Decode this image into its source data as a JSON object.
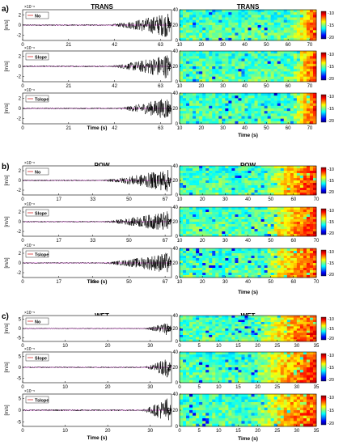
{
  "panels": [
    {
      "letter": "a)",
      "title_left": "TRANS",
      "title_right": "TRANS",
      "time": {
        "xticks": [
          "0",
          "21",
          "42",
          "63"
        ],
        "xmax": 68,
        "label": "Time (s)",
        "exp": "×10⁻⁶",
        "rows": [
          {
            "legend": "No",
            "yticks": [
              "2",
              "0",
              "-2"
            ],
            "ylim": [
              -3,
              3
            ],
            "onset": 0.55,
            "amp": 2.6
          },
          {
            "legend": "Slope",
            "yticks": [
              "2",
              "0",
              "-2"
            ],
            "ylim": [
              -3,
              3
            ],
            "onset": 0.55,
            "amp": 2.6
          },
          {
            "legend": "Tslope",
            "yticks": [
              "2",
              "0",
              "-2"
            ],
            "ylim": [
              -3,
              3
            ],
            "onset": 0.6,
            "amp": 2.4
          }
        ]
      },
      "spec": {
        "xticks": [
          "10",
          "20",
          "30",
          "40",
          "50",
          "60",
          "70"
        ],
        "xlim": [
          10,
          73
        ],
        "yticks": [
          "40",
          "20",
          "0"
        ],
        "label": "Time (s)",
        "ylabel": "Hz",
        "cticks": [
          "-10",
          "-15",
          "-20"
        ],
        "hot_start": 0.82
      }
    },
    {
      "letter": "b)",
      "title_left": "POW",
      "title_right": "POW",
      "time": {
        "xticks": [
          "0",
          "17",
          "33",
          "50",
          "67"
        ],
        "xmax": 70,
        "label": "Time (s)",
        "exp": "×10⁻⁶",
        "rows": [
          {
            "legend": "No",
            "yticks": [
              "2",
              "0",
              "-2"
            ],
            "ylim": [
              -3,
              3
            ],
            "onset": 0.5,
            "amp": 2.5
          },
          {
            "legend": "Slope",
            "yticks": [
              "2",
              "0",
              "-2"
            ],
            "ylim": [
              -3,
              3
            ],
            "onset": 0.5,
            "amp": 2.3
          },
          {
            "legend": "Tslope",
            "yticks": [
              "2",
              "0",
              "-2"
            ],
            "ylim": [
              -3,
              3
            ],
            "onset": 0.5,
            "amp": 2.3
          }
        ]
      },
      "spec": {
        "xticks": [
          "10",
          "20",
          "30",
          "40",
          "50",
          "60",
          "70"
        ],
        "xlim": [
          10,
          70
        ],
        "yticks": [
          "40",
          "20",
          "0"
        ],
        "label": "Time (s)",
        "ylabel": "Hz",
        "cticks": [
          "-10",
          "-15",
          "-20"
        ],
        "hot_start": 0.6
      }
    },
    {
      "letter": "c)",
      "title_left": "WET",
      "title_right": "WET",
      "time": {
        "xticks": [
          "0",
          "10",
          "20",
          "30"
        ],
        "xmax": 35,
        "label": "Time (s)",
        "exp": "×10⁻⁵",
        "rows": [
          {
            "legend": "No",
            "yticks": [
              "5",
              "0",
              "-5"
            ],
            "ylim": [
              -7,
              7
            ],
            "onset": 0.8,
            "amp": 4.5
          },
          {
            "legend": "Slope",
            "yticks": [
              "5",
              "0",
              "-5"
            ],
            "ylim": [
              -7,
              7
            ],
            "onset": 0.8,
            "amp": 5.5
          },
          {
            "legend": "Tslope",
            "yticks": [
              "5",
              "0",
              "-5"
            ],
            "ylim": [
              -7,
              7
            ],
            "onset": 0.78,
            "amp": 6.5
          }
        ]
      },
      "spec": {
        "xticks": [
          "0",
          "5",
          "10",
          "15",
          "20",
          "25",
          "30",
          "35"
        ],
        "xlim": [
          0,
          35
        ],
        "yticks": [
          "40",
          "20",
          "0"
        ],
        "label": "Time (s)",
        "ylabel": "Hz",
        "cticks": [
          "-10",
          "-15",
          "-20"
        ],
        "hot_start": 0.55
      }
    }
  ],
  "yunit": "[m/s]",
  "colors": {
    "signal": "#000000",
    "legend_line": "#d62728",
    "accent_line": "#ff00ff"
  },
  "chart_data": [
    {
      "type": "line",
      "title": "TRANS",
      "xlabel": "Time (s)",
      "ylabel": "[m/s]",
      "xlim": [
        0,
        68
      ],
      "ylim": [
        -3,
        3
      ],
      "x_ticks": [
        "0",
        "21",
        "42",
        "63"
      ],
      "legend": [
        "No",
        "Slope",
        "Tslope"
      ]
    },
    {
      "type": "heatmap",
      "title": "TRANS",
      "xlabel": "Time (s)",
      "ylabel": "Hz",
      "xlim": [
        10,
        73
      ],
      "ylim": [
        0,
        40
      ],
      "colorbar": [
        -20,
        -10
      ]
    },
    {
      "type": "line",
      "title": "POW",
      "xlabel": "Time (s)",
      "ylabel": "[m/s]",
      "xlim": [
        0,
        70
      ],
      "ylim": [
        -3,
        3
      ],
      "x_ticks": [
        "0",
        "17",
        "33",
        "50",
        "67"
      ],
      "legend": [
        "No",
        "Slope",
        "Tslope"
      ]
    },
    {
      "type": "heatmap",
      "title": "POW",
      "xlabel": "Time (s)",
      "ylabel": "Hz",
      "xlim": [
        10,
        70
      ],
      "ylim": [
        0,
        40
      ],
      "colorbar": [
        -20,
        -10
      ]
    },
    {
      "type": "line",
      "title": "WET",
      "xlabel": "Time (s)",
      "ylabel": "[m/s]",
      "xlim": [
        0,
        35
      ],
      "ylim": [
        -7,
        7
      ],
      "x_ticks": [
        "0",
        "10",
        "20",
        "30"
      ],
      "legend": [
        "No",
        "Slope",
        "Tslope"
      ]
    },
    {
      "type": "heatmap",
      "title": "WET",
      "xlabel": "Time (s)",
      "ylabel": "Hz",
      "xlim": [
        0,
        35
      ],
      "ylim": [
        0,
        40
      ],
      "colorbar": [
        -20,
        -10
      ]
    }
  ]
}
